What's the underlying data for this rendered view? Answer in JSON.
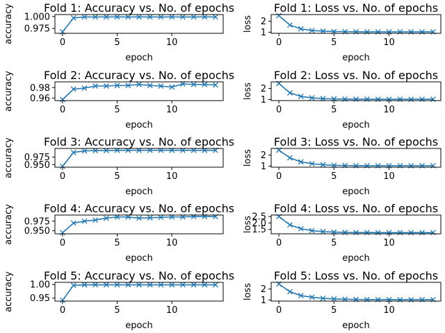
{
  "chart_data": [
    {
      "type": "line",
      "title": "Fold 1: Accuracy vs. No. of epochs",
      "xlabel": "epoch",
      "ylabel": "accuracy",
      "xlim": [
        -0.7,
        14.7
      ],
      "ylim": [
        0.965,
        1.004
      ],
      "xticks": [
        0,
        5,
        10
      ],
      "xtick_labels": [
        "0",
        "5",
        "10"
      ],
      "yticks": [
        0.975,
        1.0
      ],
      "ytick_labels": [
        "0.975",
        "1.000"
      ],
      "x": [
        0,
        1,
        2,
        3,
        4,
        5,
        6,
        7,
        8,
        9,
        10,
        11,
        12,
        13,
        14
      ],
      "values": [
        0.968,
        0.997,
        0.999,
        0.999,
        0.999,
        0.999,
        0.999,
        0.999,
        0.999,
        0.999,
        0.999,
        0.999,
        0.999,
        0.999,
        0.999
      ]
    },
    {
      "type": "line",
      "title": "Fold 1: Loss vs. No. of epochs",
      "xlabel": "epoch",
      "ylabel": "loss",
      "xlim": [
        -0.7,
        14.7
      ],
      "ylim": [
        0.9,
        2.6
      ],
      "xticks": [
        0,
        5,
        10
      ],
      "xtick_labels": [
        "0",
        "5",
        "10"
      ],
      "yticks": [
        1,
        2
      ],
      "ytick_labels": [
        "1",
        "2"
      ],
      "x": [
        0,
        1,
        2,
        3,
        4,
        5,
        6,
        7,
        8,
        9,
        10,
        11,
        12,
        13,
        14
      ],
      "values": [
        2.5,
        1.65,
        1.3,
        1.15,
        1.1,
        1.06,
        1.05,
        1.04,
        1.03,
        1.03,
        1.03,
        1.03,
        1.03,
        1.03,
        1.03
      ]
    },
    {
      "type": "line",
      "title": "Fold 2: Accuracy vs. No. of epochs",
      "xlabel": "epoch",
      "ylabel": "accuracy",
      "xlim": [
        -0.7,
        14.7
      ],
      "ylim": [
        0.955,
        0.991
      ],
      "xticks": [
        0,
        5,
        10
      ],
      "xtick_labels": [
        "0",
        "5",
        "10"
      ],
      "yticks": [
        0.96,
        0.98
      ],
      "ytick_labels": [
        "0.96",
        "0.98"
      ],
      "x": [
        0,
        1,
        2,
        3,
        4,
        5,
        6,
        7,
        8,
        9,
        10,
        11,
        12,
        13,
        14
      ],
      "values": [
        0.957,
        0.977,
        0.979,
        0.983,
        0.983,
        0.984,
        0.984,
        0.986,
        0.984,
        0.983,
        0.981,
        0.987,
        0.986,
        0.986,
        0.985
      ]
    },
    {
      "type": "line",
      "title": "Fold 2: Loss vs. No. of epochs",
      "xlabel": "epoch",
      "ylabel": "loss",
      "xlim": [
        -0.7,
        14.7
      ],
      "ylim": [
        0.9,
        2.6
      ],
      "xticks": [
        0,
        5,
        10
      ],
      "xtick_labels": [
        "0",
        "5",
        "10"
      ],
      "yticks": [
        1,
        2
      ],
      "ytick_labels": [
        "1",
        "2"
      ],
      "x": [
        0,
        1,
        2,
        3,
        4,
        5,
        6,
        7,
        8,
        9,
        10,
        11,
        12,
        13,
        14
      ],
      "values": [
        2.45,
        1.6,
        1.28,
        1.15,
        1.08,
        1.05,
        1.04,
        1.03,
        1.03,
        1.02,
        1.02,
        1.02,
        1.02,
        1.02,
        1.02
      ]
    },
    {
      "type": "line",
      "title": "Fold 3: Accuracy vs. No. of epochs",
      "xlabel": "epoch",
      "ylabel": "accuracy",
      "xlim": [
        -0.7,
        14.7
      ],
      "ylim": [
        0.942,
        1.003
      ],
      "xticks": [
        0,
        5,
        10
      ],
      "xtick_labels": [
        "0",
        "5",
        "10"
      ],
      "yticks": [
        0.95,
        0.975
      ],
      "ytick_labels": [
        "0.950",
        "0.975"
      ],
      "x": [
        0,
        1,
        2,
        3,
        4,
        5,
        6,
        7,
        8,
        9,
        10,
        11,
        12,
        13,
        14
      ],
      "values": [
        0.945,
        0.99,
        0.995,
        0.996,
        0.996,
        0.997,
        0.997,
        0.997,
        0.997,
        0.997,
        0.997,
        0.997,
        0.997,
        0.997,
        0.997
      ]
    },
    {
      "type": "line",
      "title": "Fold 3: Loss vs. No. of epochs",
      "xlabel": "epoch",
      "ylabel": "loss",
      "xlim": [
        -0.7,
        14.7
      ],
      "ylim": [
        0.9,
        2.6
      ],
      "xticks": [
        0,
        5,
        10
      ],
      "xtick_labels": [
        "0",
        "5",
        "10"
      ],
      "yticks": [
        1,
        2
      ],
      "ytick_labels": [
        "1",
        "2"
      ],
      "x": [
        0,
        1,
        2,
        3,
        4,
        5,
        6,
        7,
        8,
        9,
        10,
        11,
        12,
        13,
        14
      ],
      "values": [
        2.45,
        1.75,
        1.38,
        1.22,
        1.12,
        1.07,
        1.05,
        1.04,
        1.03,
        1.03,
        1.03,
        1.03,
        1.03,
        1.03,
        1.03
      ]
    },
    {
      "type": "line",
      "title": "Fold 4: Accuracy vs. No. of epochs",
      "xlabel": "epoch",
      "ylabel": "accuracy",
      "xlim": [
        -0.7,
        14.7
      ],
      "ylim": [
        0.942,
        0.991
      ],
      "xticks": [
        0,
        5,
        10
      ],
      "xtick_labels": [
        "0",
        "5",
        "10"
      ],
      "yticks": [
        0.95,
        0.975
      ],
      "ytick_labels": [
        "0.950",
        "0.975"
      ],
      "x": [
        0,
        1,
        2,
        3,
        4,
        5,
        6,
        7,
        8,
        9,
        10,
        11,
        12,
        13,
        14
      ],
      "values": [
        0.945,
        0.97,
        0.975,
        0.978,
        0.983,
        0.986,
        0.986,
        0.983,
        0.984,
        0.985,
        0.986,
        0.986,
        0.987,
        0.987,
        0.987
      ]
    },
    {
      "type": "line",
      "title": "Fold 4: Loss vs. No. of epochs",
      "xlabel": "epoch",
      "ylabel": "loss",
      "xlim": [
        -0.7,
        14.7
      ],
      "ylim": [
        1.15,
        2.62
      ],
      "xticks": [
        0,
        5,
        10
      ],
      "xtick_labels": [
        "0",
        "5",
        "10"
      ],
      "yticks": [
        1.5,
        2.0,
        2.5
      ],
      "ytick_labels": [
        "1.5",
        "2.0",
        "2.5"
      ],
      "x": [
        0,
        1,
        2,
        3,
        4,
        5,
        6,
        7,
        8,
        9,
        10,
        11,
        12,
        13,
        14
      ],
      "values": [
        2.5,
        1.85,
        1.55,
        1.4,
        1.32,
        1.28,
        1.26,
        1.25,
        1.25,
        1.24,
        1.24,
        1.24,
        1.24,
        1.24,
        1.24
      ]
    },
    {
      "type": "line",
      "title": "Fold 5: Accuracy vs. No. of epochs",
      "xlabel": "epoch",
      "ylabel": "accuracy",
      "xlim": [
        -0.7,
        14.7
      ],
      "ylim": [
        0.939,
        1.008
      ],
      "xticks": [
        0,
        5,
        10
      ],
      "xtick_labels": [
        "0",
        "5",
        "10"
      ],
      "yticks": [
        0.95,
        1.0
      ],
      "ytick_labels": [
        "0.95",
        "1.00"
      ],
      "x": [
        0,
        1,
        2,
        3,
        4,
        5,
        6,
        7,
        8,
        9,
        10,
        11,
        12,
        13,
        14
      ],
      "values": [
        0.942,
        0.997,
        0.999,
        0.999,
        0.999,
        0.999,
        0.999,
        0.999,
        0.999,
        0.999,
        0.999,
        0.999,
        0.999,
        0.999,
        0.999
      ]
    },
    {
      "type": "line",
      "title": "Fold 5: Loss vs. No. of epochs",
      "xlabel": "epoch",
      "ylabel": "loss",
      "xlim": [
        -0.7,
        14.7
      ],
      "ylim": [
        0.9,
        2.6
      ],
      "xticks": [
        0,
        5,
        10
      ],
      "xtick_labels": [
        "0",
        "5",
        "10"
      ],
      "yticks": [
        1,
        2
      ],
      "ytick_labels": [
        "1",
        "2"
      ],
      "x": [
        0,
        1,
        2,
        3,
        4,
        5,
        6,
        7,
        8,
        9,
        10,
        11,
        12,
        13,
        14
      ],
      "values": [
        2.45,
        1.75,
        1.4,
        1.25,
        1.15,
        1.1,
        1.07,
        1.05,
        1.04,
        1.04,
        1.04,
        1.03,
        1.03,
        1.03,
        1.03
      ]
    }
  ],
  "style": {
    "series_color": "#1f77b4",
    "marker": "x",
    "grid": false
  }
}
